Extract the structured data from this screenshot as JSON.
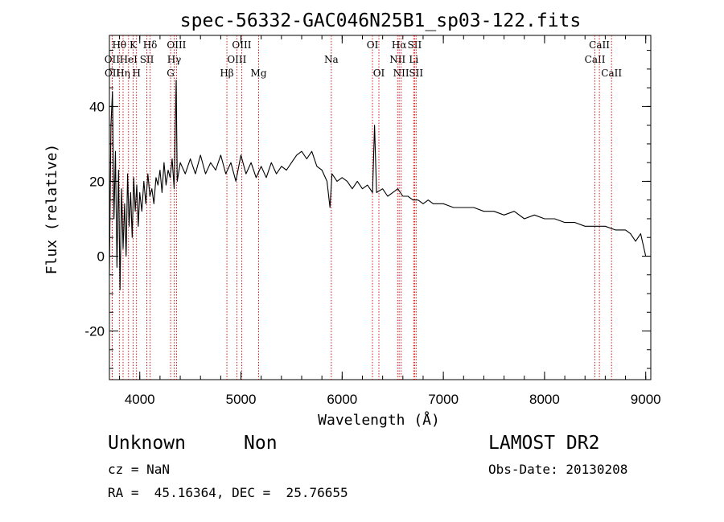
{
  "chart_data": {
    "type": "line",
    "title": "spec-56332-GAC046N25B1_sp03-122.fits",
    "xlabel": "Wavelength (Å)",
    "ylabel": "Flux (relative)",
    "xlim": [
      3700,
      9050
    ],
    "ylim": [
      -33,
      59
    ],
    "x_ticks": [
      4000,
      5000,
      6000,
      7000,
      8000,
      9000
    ],
    "x_tick_labels": [
      "4000",
      "5000",
      "6000",
      "7000",
      "8000",
      "9000"
    ],
    "y_ticks": [
      -20,
      0,
      20,
      40
    ],
    "y_tick_labels": [
      "-20",
      "0",
      "20",
      "40"
    ],
    "line_color": "#000000",
    "marker_color": "#cc0000",
    "series": [
      {
        "points": [
          [
            3700,
            -5
          ],
          [
            3715,
            35
          ],
          [
            3730,
            44
          ],
          [
            3745,
            10
          ],
          [
            3760,
            28
          ],
          [
            3775,
            -3
          ],
          [
            3790,
            23
          ],
          [
            3805,
            -9
          ],
          [
            3820,
            18
          ],
          [
            3835,
            2
          ],
          [
            3850,
            14
          ],
          [
            3865,
            0
          ],
          [
            3880,
            22
          ],
          [
            3895,
            8
          ],
          [
            3910,
            17
          ],
          [
            3925,
            5
          ],
          [
            3940,
            21
          ],
          [
            3955,
            12
          ],
          [
            3970,
            19
          ],
          [
            3985,
            8
          ],
          [
            4000,
            17
          ],
          [
            4020,
            12
          ],
          [
            4040,
            20
          ],
          [
            4060,
            14
          ],
          [
            4080,
            22
          ],
          [
            4100,
            16
          ],
          [
            4120,
            18
          ],
          [
            4140,
            14
          ],
          [
            4160,
            21
          ],
          [
            4180,
            19
          ],
          [
            4200,
            23
          ],
          [
            4220,
            17
          ],
          [
            4240,
            25
          ],
          [
            4260,
            19
          ],
          [
            4280,
            23
          ],
          [
            4300,
            21
          ],
          [
            4320,
            26
          ],
          [
            4340,
            18
          ],
          [
            4360,
            47
          ],
          [
            4370,
            20
          ],
          [
            4400,
            25
          ],
          [
            4450,
            22
          ],
          [
            4500,
            26
          ],
          [
            4550,
            22
          ],
          [
            4600,
            27
          ],
          [
            4650,
            22
          ],
          [
            4700,
            25
          ],
          [
            4750,
            23
          ],
          [
            4800,
            27
          ],
          [
            4850,
            22
          ],
          [
            4900,
            25
          ],
          [
            4950,
            20
          ],
          [
            5000,
            27
          ],
          [
            5050,
            22
          ],
          [
            5100,
            25
          ],
          [
            5150,
            21
          ],
          [
            5200,
            24
          ],
          [
            5250,
            21
          ],
          [
            5300,
            25
          ],
          [
            5350,
            22
          ],
          [
            5400,
            24
          ],
          [
            5450,
            23
          ],
          [
            5500,
            25
          ],
          [
            5550,
            27
          ],
          [
            5600,
            28
          ],
          [
            5650,
            26
          ],
          [
            5700,
            28
          ],
          [
            5750,
            24
          ],
          [
            5800,
            23
          ],
          [
            5850,
            20
          ],
          [
            5880,
            13
          ],
          [
            5900,
            22
          ],
          [
            5950,
            20
          ],
          [
            6000,
            21
          ],
          [
            6050,
            20
          ],
          [
            6100,
            18
          ],
          [
            6150,
            20
          ],
          [
            6200,
            18
          ],
          [
            6250,
            19
          ],
          [
            6300,
            17
          ],
          [
            6320,
            35
          ],
          [
            6340,
            17
          ],
          [
            6400,
            18
          ],
          [
            6450,
            16
          ],
          [
            6500,
            17
          ],
          [
            6550,
            18
          ],
          [
            6600,
            16
          ],
          [
            6650,
            16
          ],
          [
            6700,
            15
          ],
          [
            6750,
            15
          ],
          [
            6800,
            14
          ],
          [
            6850,
            15
          ],
          [
            6900,
            14
          ],
          [
            6950,
            14
          ],
          [
            7000,
            14
          ],
          [
            7100,
            13
          ],
          [
            7200,
            13
          ],
          [
            7300,
            13
          ],
          [
            7400,
            12
          ],
          [
            7500,
            12
          ],
          [
            7600,
            11
          ],
          [
            7700,
            12
          ],
          [
            7800,
            10
          ],
          [
            7900,
            11
          ],
          [
            8000,
            10
          ],
          [
            8100,
            10
          ],
          [
            8200,
            9
          ],
          [
            8300,
            9
          ],
          [
            8400,
            8
          ],
          [
            8500,
            8
          ],
          [
            8600,
            8
          ],
          [
            8700,
            7
          ],
          [
            8800,
            7
          ],
          [
            8850,
            6
          ],
          [
            8900,
            4
          ],
          [
            8950,
            6
          ],
          [
            9000,
            0
          ]
        ]
      }
    ],
    "spectral_lines": [
      {
        "label": "OII",
        "wl": 3727,
        "row": 2
      },
      {
        "label": "OII",
        "wl": 3729,
        "row": 3
      },
      {
        "label": "Hθ",
        "wl": 3798,
        "row": 1
      },
      {
        "label": "Hη",
        "wl": 3835,
        "row": 3
      },
      {
        "label": "HeI",
        "wl": 3889,
        "row": 2
      },
      {
        "label": "K",
        "wl": 3934,
        "row": 1
      },
      {
        "label": "H",
        "wl": 3968,
        "row": 3
      },
      {
        "label": "SII",
        "wl": 4070,
        "row": 2
      },
      {
        "label": "Hδ",
        "wl": 4102,
        "row": 1
      },
      {
        "label": "G",
        "wl": 4305,
        "row": 3
      },
      {
        "label": "Hγ",
        "wl": 4340,
        "row": 2
      },
      {
        "label": "OIII",
        "wl": 4363,
        "row": 1
      },
      {
        "label": "Hβ",
        "wl": 4861,
        "row": 3
      },
      {
        "label": "OIII",
        "wl": 4959,
        "row": 2
      },
      {
        "label": "OIII",
        "wl": 5007,
        "row": 1
      },
      {
        "label": "Mg",
        "wl": 5175,
        "row": 3
      },
      {
        "label": "Na",
        "wl": 5893,
        "row": 2
      },
      {
        "label": "OI",
        "wl": 6300,
        "row": 1
      },
      {
        "label": "OI",
        "wl": 6363,
        "row": 3
      },
      {
        "label": "NII",
        "wl": 6548,
        "row": 2
      },
      {
        "label": "Hα",
        "wl": 6563,
        "row": 1
      },
      {
        "label": "NII",
        "wl": 6583,
        "row": 3
      },
      {
        "label": "Li",
        "wl": 6707,
        "row": 2
      },
      {
        "label": "SII",
        "wl": 6716,
        "row": 1
      },
      {
        "label": "SII",
        "wl": 6731,
        "row": 3
      },
      {
        "label": "CaII",
        "wl": 8498,
        "row": 2
      },
      {
        "label": "CaII",
        "wl": 8542,
        "row": 1
      },
      {
        "label": "CaII",
        "wl": 8662,
        "row": 3
      }
    ]
  },
  "info": {
    "object_class": "Unknown",
    "object_subclass": "Non",
    "survey": "LAMOST DR2",
    "redshift": "cz = NaN",
    "obs_date": "Obs-Date: 20130208",
    "coords": "RA =  45.16364, DEC =  25.76655"
  }
}
